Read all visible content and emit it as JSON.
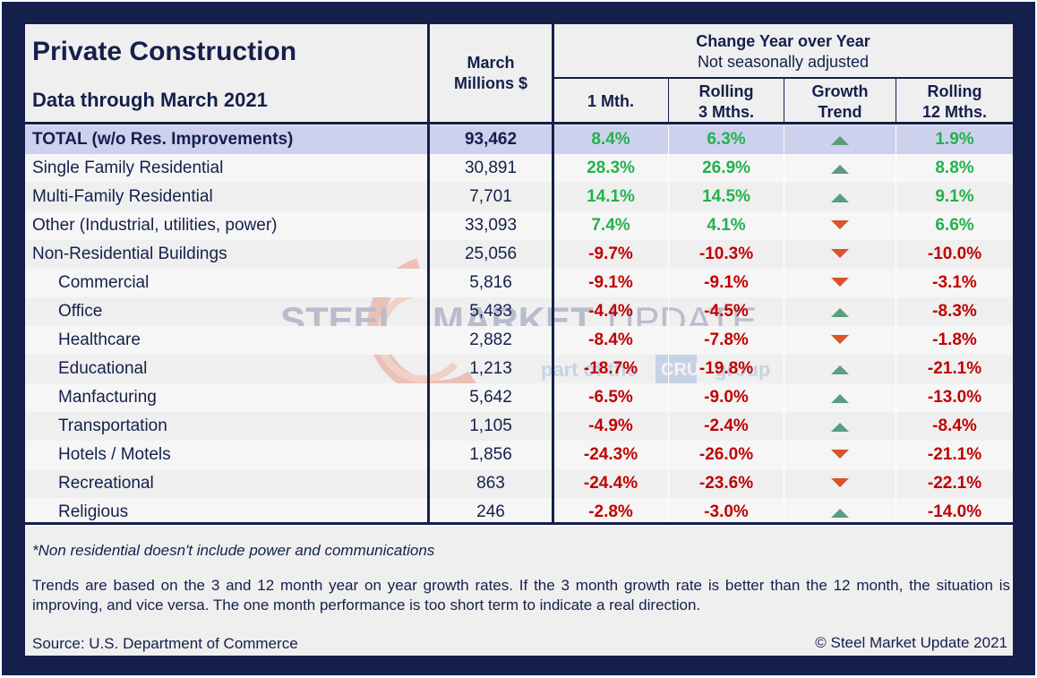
{
  "header": {
    "title": "Private Construction",
    "subtitle": "Data through March 2021",
    "col_march_line1": "March",
    "col_march_line2": "Millions $",
    "change_title": "Change Year over Year",
    "change_sub": "Not seasonally adjusted",
    "col_1mth": "1 Mth.",
    "col_rolling3_line1": "Rolling",
    "col_rolling3_line2": "3 Mths.",
    "col_growth_line1": "Growth",
    "col_growth_line2": "Trend",
    "col_rolling12_line1": "Rolling",
    "col_rolling12_line2": "12 Mths."
  },
  "watermark": {
    "brand": "STEEL MARKET UPDATE",
    "brand_word1": "STEEL",
    "brand_word2": "MARKET",
    "brand_word3": "UPDATE",
    "partof": "part of the",
    "cru": "CRU",
    "group": "group"
  },
  "rows": [
    {
      "label": "TOTAL (w/o Res. Improvements)",
      "value": "93,462",
      "m1": "8.4%",
      "r3": "6.3%",
      "trend": "up",
      "r12": "1.9%",
      "indent": false,
      "total": true
    },
    {
      "label": "Single Family Residential",
      "value": "30,891",
      "m1": "28.3%",
      "r3": "26.9%",
      "trend": "up",
      "r12": "8.8%",
      "indent": false
    },
    {
      "label": "Multi-Family Residential",
      "value": "7,701",
      "m1": "14.1%",
      "r3": "14.5%",
      "trend": "up",
      "r12": "9.1%",
      "indent": false
    },
    {
      "label": "Other (Industrial, utilities, power)",
      "value": "33,093",
      "m1": "7.4%",
      "r3": "4.1%",
      "trend": "down",
      "r12": "6.6%",
      "indent": false
    },
    {
      "label": "Non-Residential Buildings",
      "value": "25,056",
      "m1": "-9.7%",
      "r3": "-10.3%",
      "trend": "down",
      "r12": "-10.0%",
      "indent": false
    },
    {
      "label": "Commercial",
      "value": "5,816",
      "m1": "-9.1%",
      "r3": "-9.1%",
      "trend": "down",
      "r12": "-3.1%",
      "indent": true
    },
    {
      "label": "Office",
      "value": "5,433",
      "m1": "-4.4%",
      "r3": "-4.5%",
      "trend": "up",
      "r12": "-8.3%",
      "indent": true
    },
    {
      "label": "Healthcare",
      "value": "2,882",
      "m1": "-8.4%",
      "r3": "-7.8%",
      "trend": "down",
      "r12": "-1.8%",
      "indent": true
    },
    {
      "label": "Educational",
      "value": "1,213",
      "m1": "-18.7%",
      "r3": "-19.8%",
      "trend": "up",
      "r12": "-21.1%",
      "indent": true
    },
    {
      "label": "Manfacturing",
      "value": "5,642",
      "m1": "-6.5%",
      "r3": "-9.0%",
      "trend": "up",
      "r12": "-13.0%",
      "indent": true
    },
    {
      "label": "Transportation",
      "value": "1,105",
      "m1": "-4.9%",
      "r3": "-2.4%",
      "trend": "up",
      "r12": "-8.4%",
      "indent": true
    },
    {
      "label": "Hotels / Motels",
      "value": "1,856",
      "m1": "-24.3%",
      "r3": "-26.0%",
      "trend": "down",
      "r12": "-21.1%",
      "indent": true
    },
    {
      "label": "Recreational",
      "value": "863",
      "m1": "-24.4%",
      "r3": "-23.6%",
      "trend": "down",
      "r12": "-22.1%",
      "indent": true
    },
    {
      "label": "Religious",
      "value": "246",
      "m1": "-2.8%",
      "r3": "-3.0%",
      "trend": "up",
      "r12": "-14.0%",
      "indent": true
    }
  ],
  "footer": {
    "note": "*Non residential doesn't include power and communications",
    "trend_text": "Trends are based on the 3 and 12 month year on year growth rates. If the 3 month growth rate is better than the 12 month, the situation is improving, and vice versa. The one month performance is too short term to indicate a real direction.",
    "source": "Source: U.S. Department of Commerce",
    "copyright": "© Steel Market Update 2021"
  },
  "colors": {
    "navy": "#14204b",
    "positive": "#22b24c",
    "negative": "#c00000",
    "trend_up": "#5a9e7f",
    "trend_down": "#d9542b",
    "total_row_bg": "#cdd1ee",
    "alt_row_bg": "#f6f6f6",
    "panel_bg": "#efefef"
  }
}
